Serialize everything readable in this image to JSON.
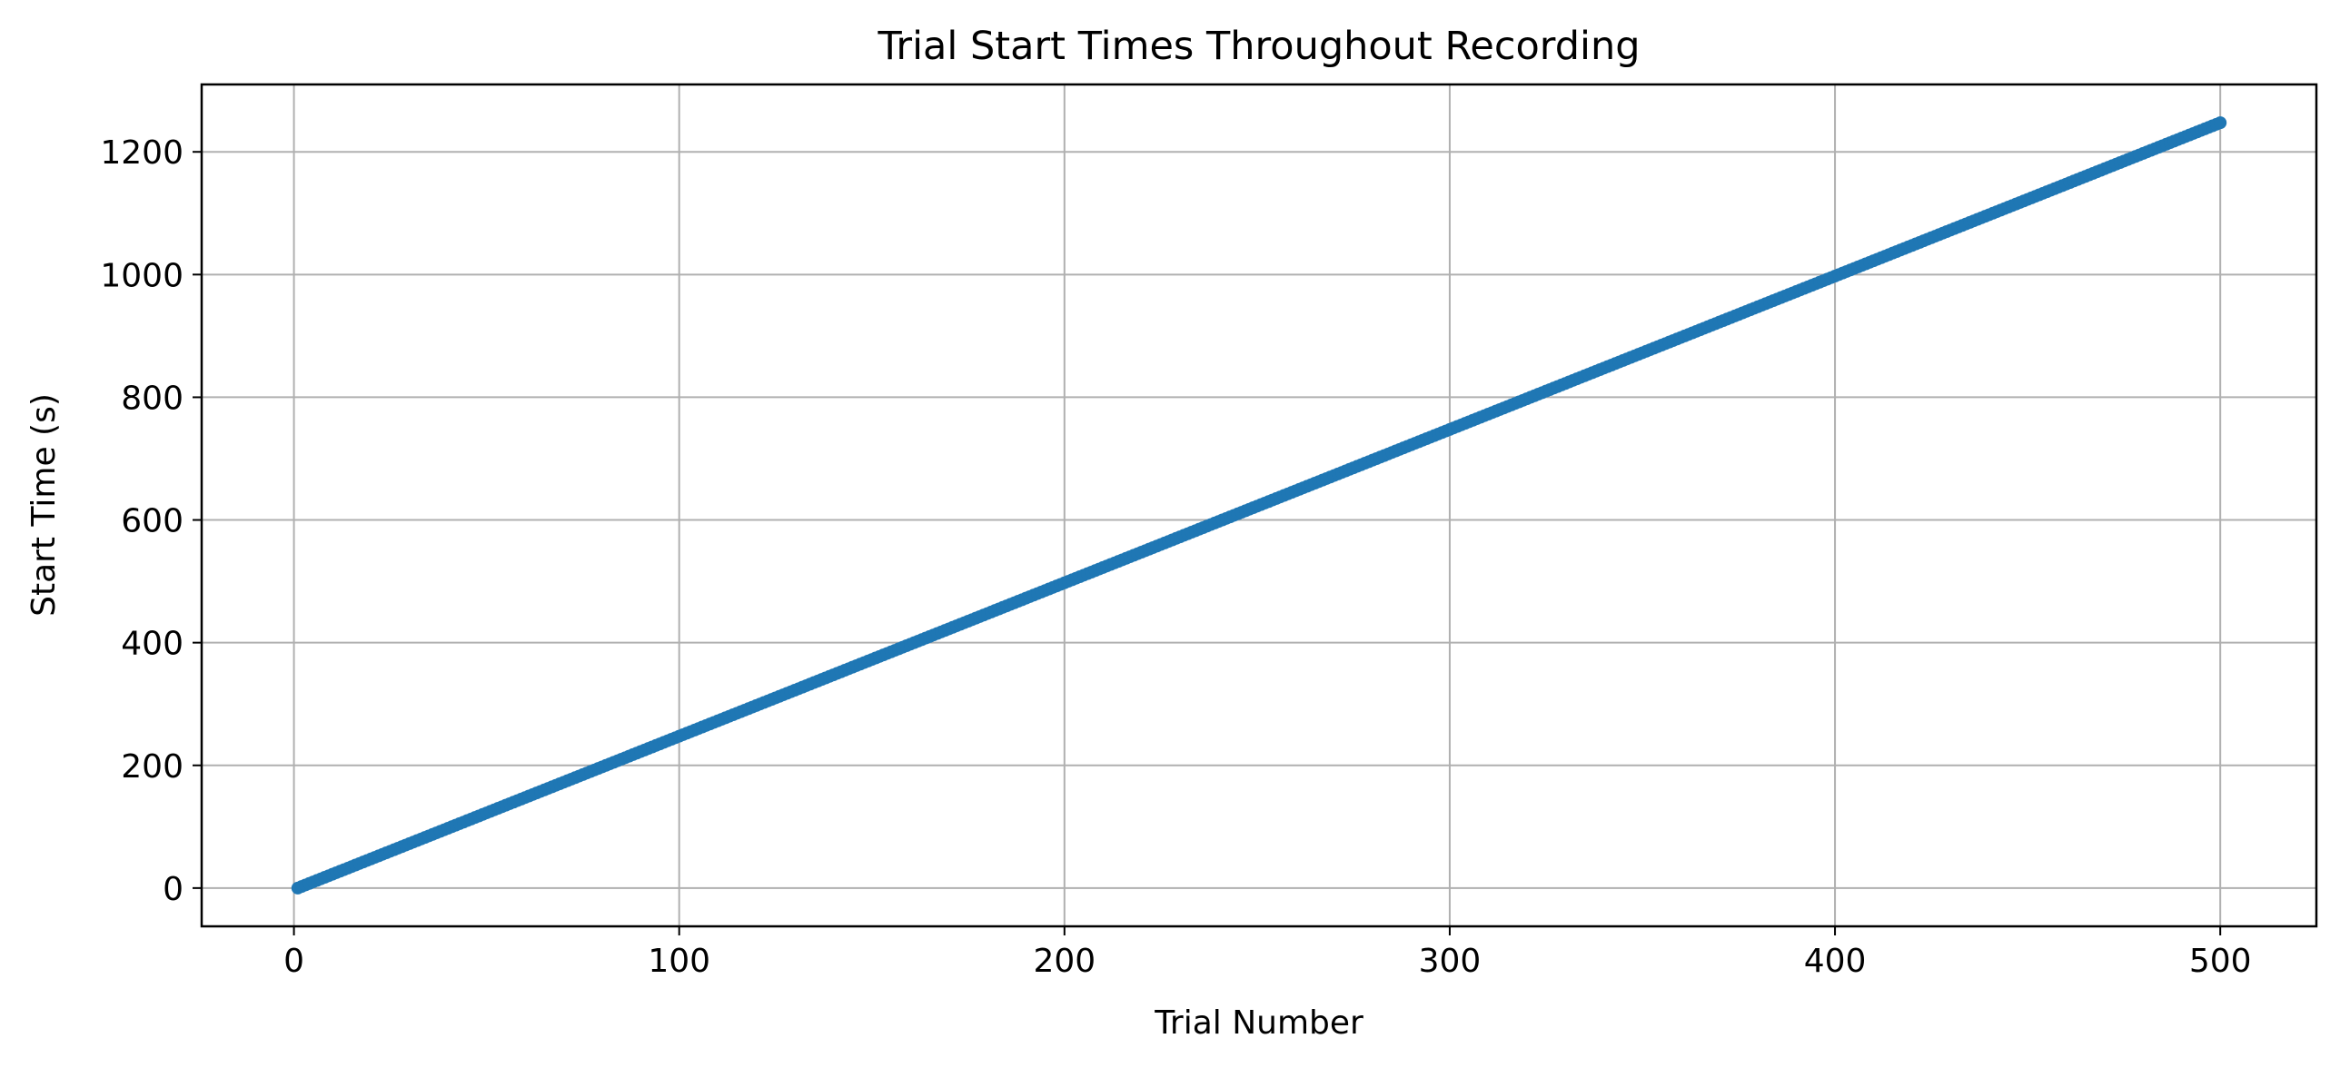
{
  "chart_data": {
    "type": "scatter",
    "title": "Trial Start Times Throughout Recording",
    "xlabel": "Trial Number",
    "ylabel": "Start Time (s)",
    "xlim": [
      -23.95,
      524.95
    ],
    "ylim": [
      -62.375,
      1309.875
    ],
    "xticks": [
      0,
      100,
      200,
      300,
      400,
      500
    ],
    "yticks": [
      0,
      200,
      400,
      600,
      800,
      1000,
      1200
    ],
    "grid": true,
    "legend": "none",
    "series": [
      {
        "color": "#1f77b4",
        "marker": "circle",
        "x_start": 1,
        "x_end": 500,
        "x_step": 1,
        "y_start": 0,
        "y_step": 2.5
      }
    ]
  }
}
